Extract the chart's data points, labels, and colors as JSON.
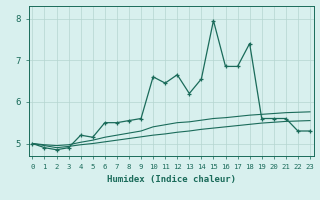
{
  "xlabel": "Humidex (Indice chaleur)",
  "x": [
    0,
    1,
    2,
    3,
    4,
    5,
    6,
    7,
    8,
    9,
    10,
    11,
    12,
    13,
    14,
    15,
    16,
    17,
    18,
    19,
    20,
    21,
    22,
    23
  ],
  "line_main": [
    5.0,
    4.9,
    4.85,
    4.9,
    5.2,
    5.15,
    5.5,
    5.5,
    5.55,
    5.6,
    6.6,
    6.45,
    6.65,
    6.2,
    6.55,
    7.95,
    6.85,
    6.85,
    7.4,
    5.6,
    5.6,
    5.6,
    5.3,
    5.3
  ],
  "line_mid": [
    5.0,
    4.97,
    4.95,
    4.97,
    5.03,
    5.08,
    5.15,
    5.2,
    5.25,
    5.3,
    5.4,
    5.45,
    5.5,
    5.52,
    5.56,
    5.6,
    5.62,
    5.65,
    5.68,
    5.7,
    5.72,
    5.74,
    5.75,
    5.76
  ],
  "line_low": [
    5.0,
    4.95,
    4.9,
    4.93,
    4.97,
    5.0,
    5.04,
    5.08,
    5.12,
    5.16,
    5.2,
    5.23,
    5.27,
    5.3,
    5.34,
    5.37,
    5.4,
    5.43,
    5.46,
    5.49,
    5.51,
    5.53,
    5.54,
    5.55
  ],
  "color_main": "#1a6b5a",
  "bg_color": "#d8f0ee",
  "grid_color": "#b5d5d0",
  "ylim": [
    4.7,
    8.3
  ],
  "yticks": [
    5,
    6,
    7,
    8
  ],
  "xlim": [
    -0.3,
    23.3
  ]
}
